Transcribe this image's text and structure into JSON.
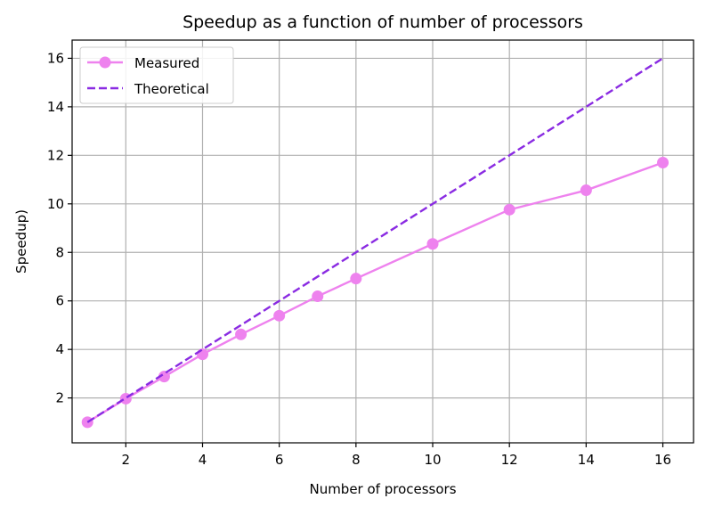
{
  "chart_data": {
    "type": "line",
    "title": "Speedup as a function of number of processors",
    "xlabel": "Number of processors",
    "ylabel": "Speedup)",
    "xlim": [
      0.6,
      16.8
    ],
    "ylim": [
      0.15,
      16.75
    ],
    "xticks": [
      2,
      4,
      6,
      8,
      10,
      12,
      14,
      16
    ],
    "yticks": [
      2,
      4,
      6,
      8,
      10,
      12,
      14,
      16
    ],
    "grid": true,
    "legend_position": "top-left",
    "series": [
      {
        "name": "Measured",
        "style": "solid-line-circle-markers",
        "color": "#EE82EE",
        "x": [
          1,
          2,
          3,
          4,
          5,
          6,
          7,
          8,
          10,
          12,
          14,
          16
        ],
        "y": [
          1.0,
          1.97,
          2.88,
          3.8,
          4.62,
          5.39,
          6.19,
          6.92,
          8.35,
          9.76,
          10.56,
          11.7
        ]
      },
      {
        "name": "Theoretical",
        "style": "dashed-line",
        "color": "#8A2BE2",
        "x": [
          1,
          16
        ],
        "y": [
          1,
          16
        ]
      }
    ]
  }
}
